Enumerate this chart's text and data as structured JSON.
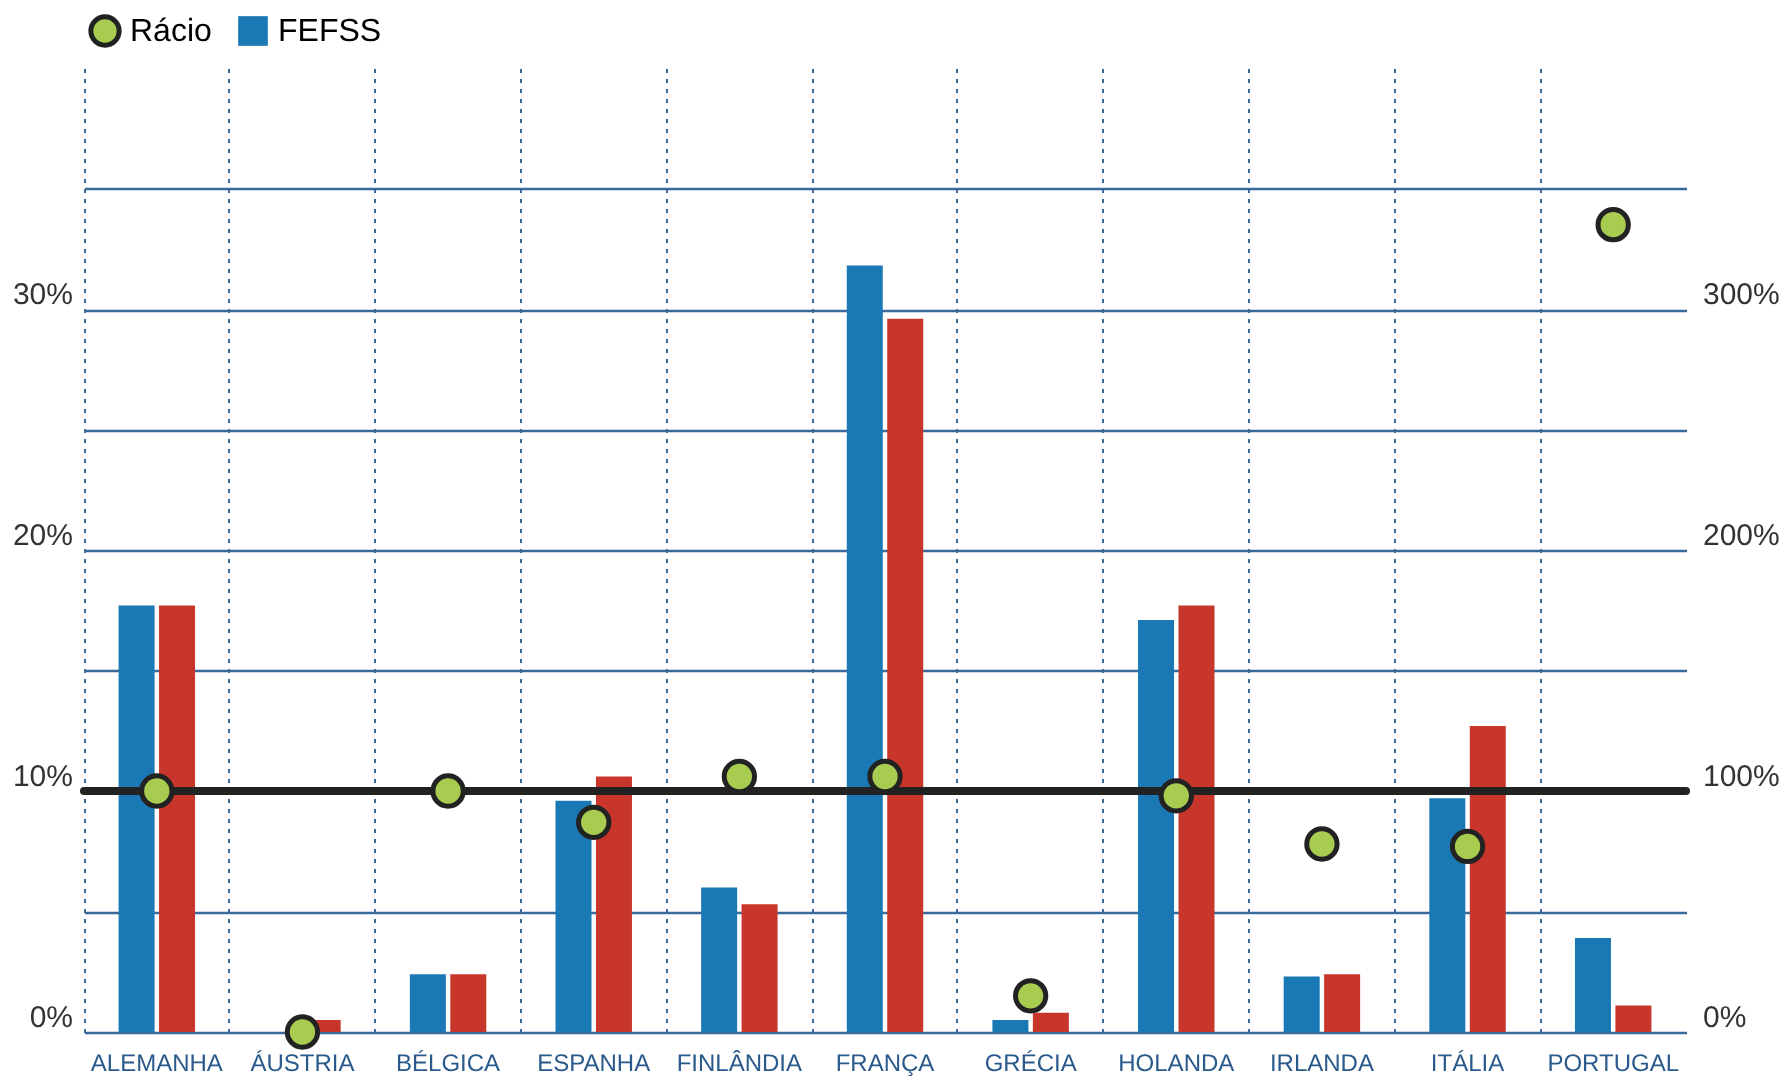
{
  "chart_data": {
    "type": "bar",
    "categories": [
      "ALEMANHA",
      "ÁUSTRIA",
      "BÉLGICA",
      "ESPANHA",
      "FINLÂNDIA",
      "FRANÇA",
      "GRÉCIA",
      "HOLANDA",
      "IRLANDA",
      "ITÁLIA",
      "PORTUGAL"
    ],
    "series": [
      {
        "name": "FEFSS",
        "color": "#1a78b4",
        "values": [
          17.7,
          0,
          2.4,
          9.6,
          6.0,
          31.8,
          0.5,
          17.1,
          2.3,
          9.7,
          3.9
        ]
      },
      {
        "color": "#c8352a",
        "values": [
          17.7,
          0.5,
          2.4,
          10.6,
          5.3,
          29.6,
          0.8,
          17.7,
          2.4,
          12.7,
          1.1
        ]
      },
      {
        "name": "Rácio",
        "type": "scatter",
        "axis": "y2",
        "color": "#a8cc50",
        "values": [
          100,
          0,
          100,
          87,
          106,
          106,
          15,
          98,
          78,
          77,
          335
        ]
      }
    ],
    "ylim": [
      0,
      40
    ],
    "yticks": [
      {
        "value": 0,
        "label": "0%"
      },
      {
        "value": 5,
        "label": null
      },
      {
        "value": 10,
        "label": "10%"
      },
      {
        "value": 15,
        "label": null
      },
      {
        "value": 20,
        "label": "20%"
      },
      {
        "value": 25,
        "label": null
      },
      {
        "value": 30,
        "label": "30%"
      },
      {
        "value": 35,
        "label": null
      }
    ],
    "y2lim": [
      0,
      400
    ],
    "y2ticks": [
      {
        "value": 0,
        "label": "0%"
      },
      {
        "value": 100,
        "label": "100%"
      },
      {
        "value": 200,
        "label": "200%"
      },
      {
        "value": 300,
        "label": "300%"
      }
    ],
    "ref_lines": [
      {
        "axis": "y2",
        "value": 100,
        "color": "#222222"
      }
    ],
    "grid": true,
    "legend": "top",
    "marker": "circle"
  }
}
